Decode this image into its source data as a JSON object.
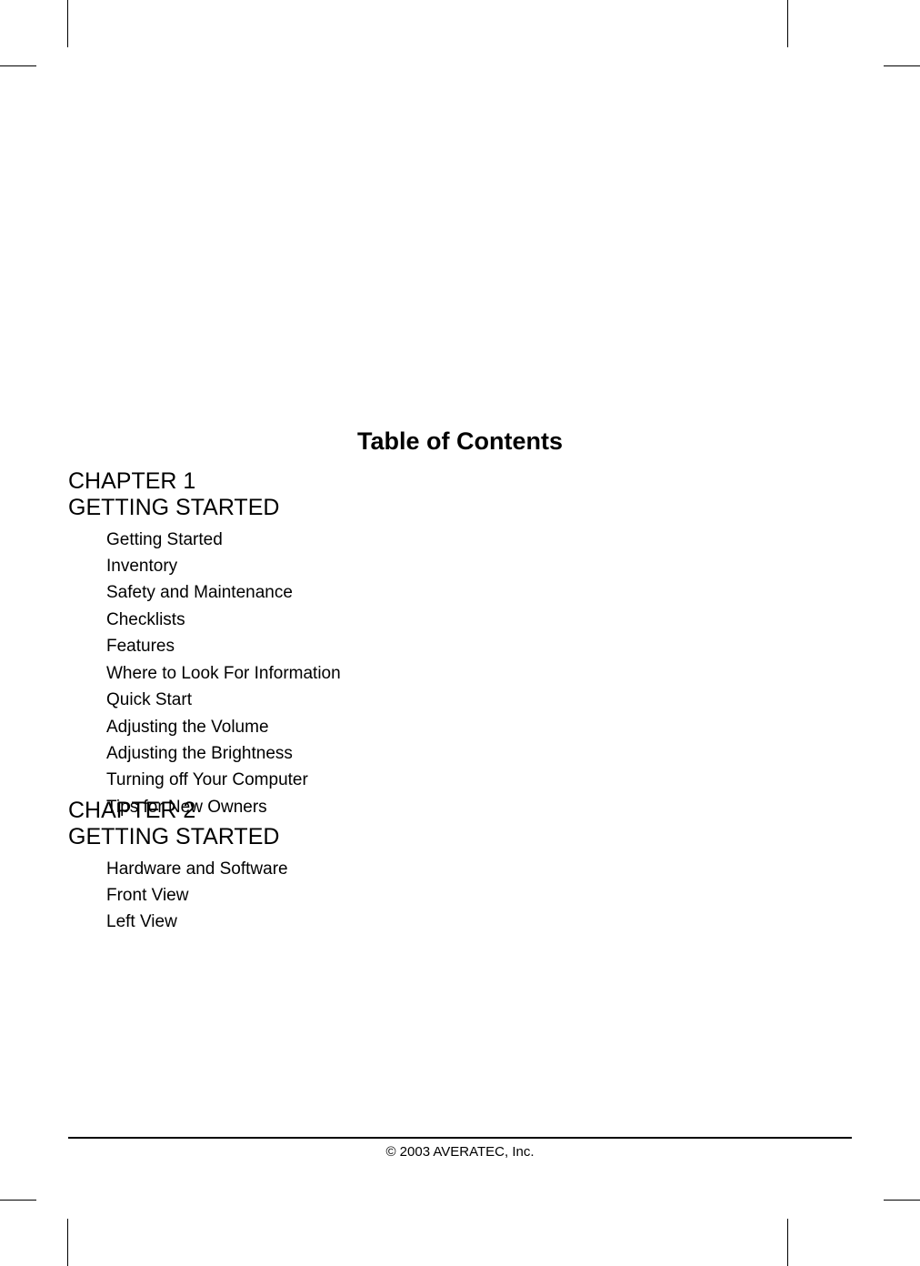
{
  "title": "Table of Contents",
  "chapters": [
    {
      "label": "CHAPTER 1",
      "subtitle": "GETTING STARTED",
      "items": [
        "Getting Started",
        "Inventory",
        "Safety and Maintenance",
        "Checklists",
        "Features",
        "Where to Look For Information",
        "Quick Start",
        "Adjusting the Volume",
        "Adjusting the Brightness",
        "Turning off Your Computer",
        "Tips for New Owners"
      ]
    },
    {
      "label": "CHAPTER 2",
      "subtitle": "GETTING STARTED",
      "items": [
        "Hardware and Software",
        "Front View",
        "Left View"
      ]
    }
  ],
  "footer": "© 2003 AVERATEC, Inc.",
  "colors": {
    "background": "#ffffff",
    "text": "#000000",
    "rule": "#000000"
  },
  "typography": {
    "title_fontsize": 27,
    "title_weight": "bold",
    "chapter_fontsize": 25,
    "item_fontsize": 19,
    "footer_fontsize": 15,
    "font_family": "Arial"
  }
}
